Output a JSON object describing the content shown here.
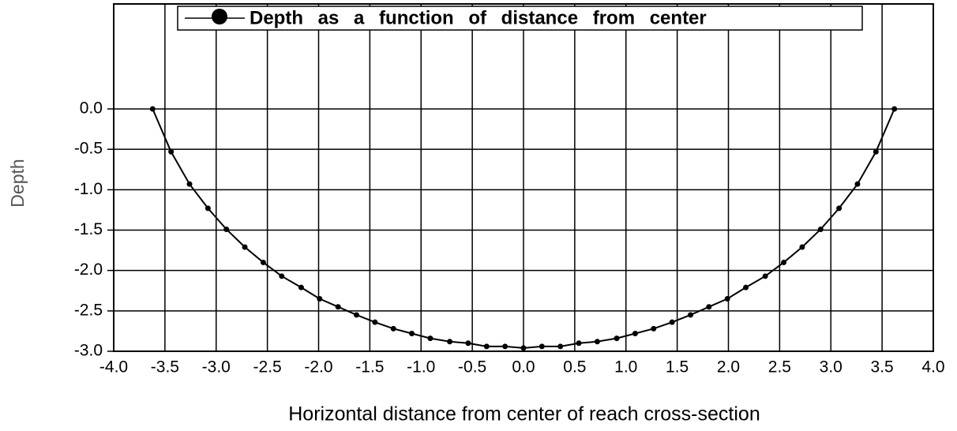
{
  "chart_data": {
    "type": "line",
    "xlabel": "Horizontal distance from center of reach cross-section",
    "ylabel": "Depth",
    "x": [
      -3.62,
      -3.44,
      -3.26,
      -3.08,
      -2.9,
      -2.72,
      -2.54,
      -2.36,
      -2.17,
      -1.99,
      -1.81,
      -1.63,
      -1.45,
      -1.27,
      -1.09,
      -0.91,
      -0.72,
      -0.54,
      -0.36,
      -0.18,
      0,
      0.18,
      0.36,
      0.54,
      0.72,
      0.91,
      1.09,
      1.27,
      1.45,
      1.63,
      1.81,
      1.99,
      2.17,
      2.36,
      2.54,
      2.72,
      2.9,
      3.08,
      3.26,
      3.44,
      3.62
    ],
    "series": [
      {
        "name": "Depth as a function of distance from center",
        "color": "#000000",
        "values": [
          0,
          -0.53,
          -0.93,
          -1.23,
          -1.49,
          -1.71,
          -1.9,
          -2.07,
          -2.21,
          -2.35,
          -2.45,
          -2.55,
          -2.64,
          -2.72,
          -2.78,
          -2.84,
          -2.88,
          -2.9,
          -2.94,
          -2.94,
          -2.96,
          -2.94,
          -2.94,
          -2.9,
          -2.88,
          -2.84,
          -2.78,
          -2.72,
          -2.64,
          -2.55,
          -2.45,
          -2.35,
          -2.21,
          -2.07,
          -1.9,
          -1.71,
          -1.49,
          -1.23,
          -0.93,
          -0.53,
          0
        ]
      }
    ],
    "xlim": [
      -4,
      4
    ],
    "xticks": [
      {
        "value": -4,
        "label": "-4.0"
      },
      -3.5,
      {
        "value": -3,
        "label": "-3.0"
      },
      -2.5,
      {
        "value": -2,
        "label": "-2.0"
      },
      -1.5,
      {
        "value": -1,
        "label": "-1.0"
      },
      -0.5,
      {
        "value": 0,
        "label": "0.0"
      },
      0.5,
      {
        "value": 1,
        "label": "1.0"
      },
      1.5,
      {
        "value": 2,
        "label": "2.0"
      },
      2.5,
      {
        "value": 3,
        "label": "3.0"
      },
      3.5,
      {
        "value": 4,
        "label": "4.0"
      }
    ],
    "ylim": [
      -3,
      1.3
    ],
    "yticks": [
      {
        "value": 0,
        "label": "0.0"
      },
      -0.5,
      {
        "value": -1,
        "label": "-1.0"
      },
      -1.5,
      {
        "value": -2,
        "label": "-2.0"
      },
      -2.5,
      {
        "value": -3,
        "label": "-3.0"
      }
    ],
    "grid": true,
    "legend": "top"
  }
}
